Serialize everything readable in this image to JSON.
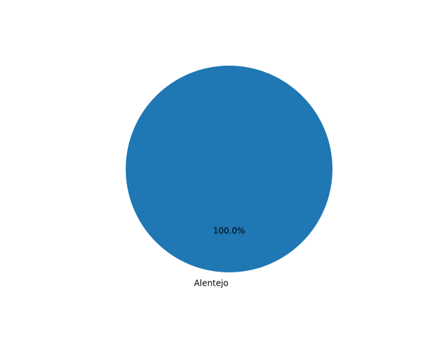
{
  "chart_data": {
    "type": "pie",
    "slices": [
      {
        "label": "Alentejo",
        "value": 100.0,
        "pct_label": "100.0%",
        "color": "#1f77b4"
      }
    ]
  }
}
